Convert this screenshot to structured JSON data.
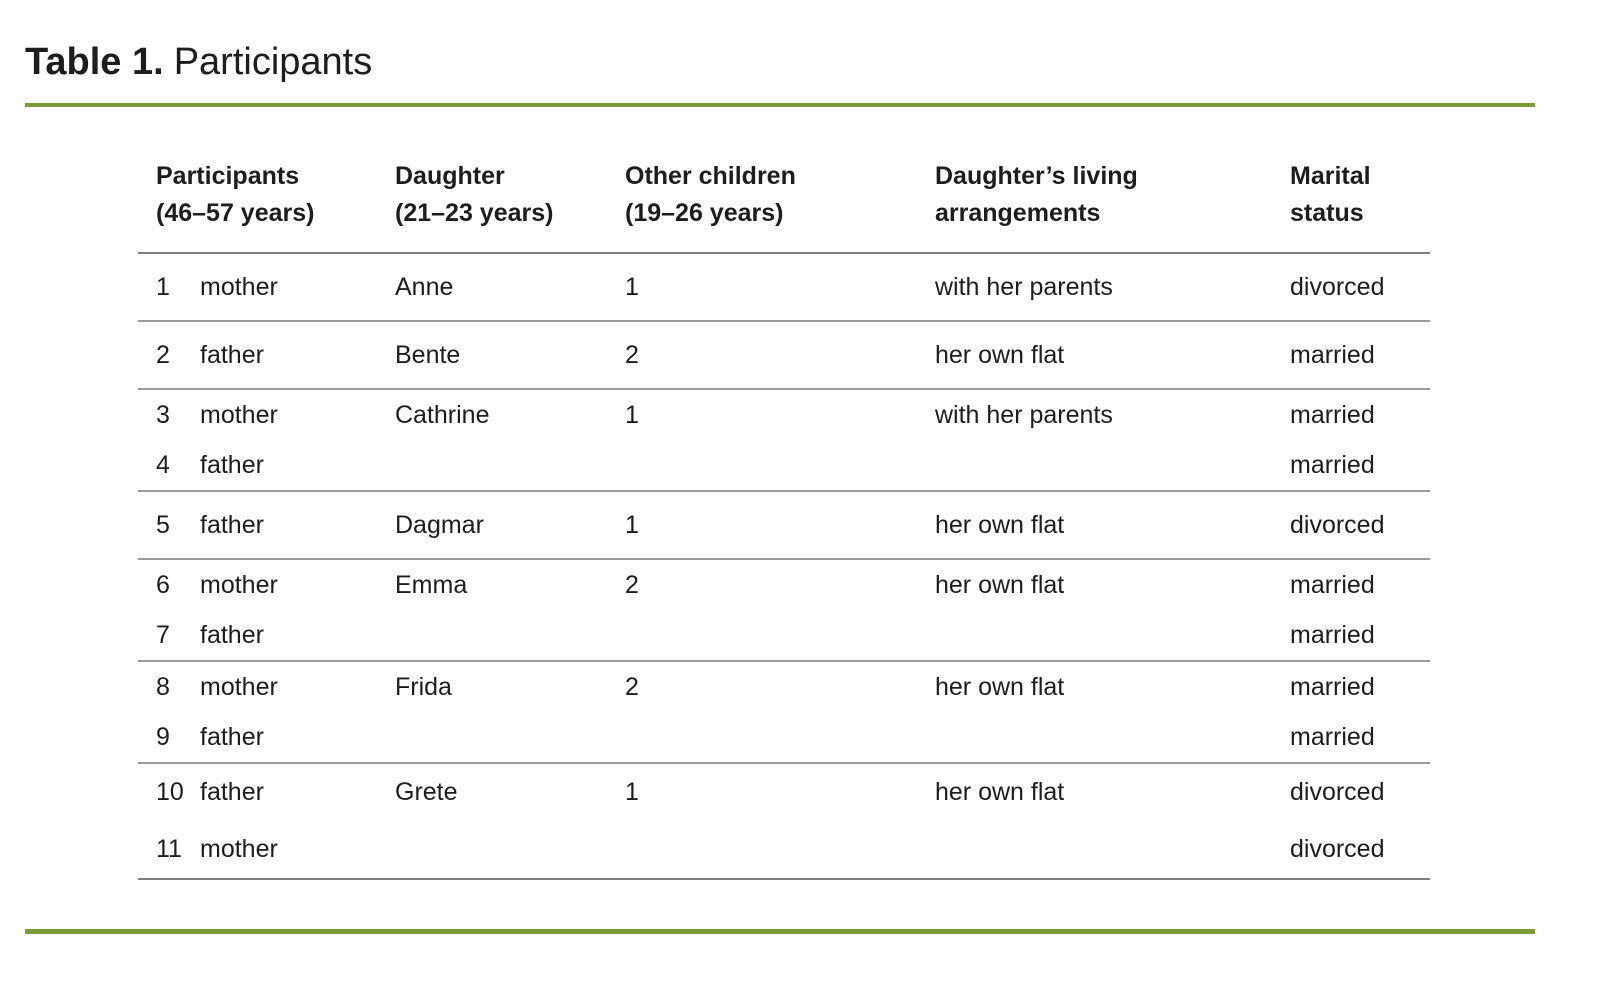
{
  "title": {
    "label": "Table 1.",
    "text": "Participants"
  },
  "colors": {
    "accent_green": "#7c9a38",
    "header_line_gray": "#7d7d7d",
    "row_line_gray": "#9a9a9a",
    "text": "#1d1d1d"
  },
  "table": {
    "headers": [
      {
        "line1": "Participants",
        "line2": "(46–57 years)"
      },
      {
        "line1": "Daughter",
        "line2": "(21–23 years)"
      },
      {
        "line1": "Other children",
        "line2": "(19–26 years)"
      },
      {
        "line1": "Daughter’s living",
        "line2": "arrangements"
      },
      {
        "line1": "Marital",
        "line2": "status"
      }
    ],
    "groups": [
      {
        "participants": [
          {
            "num": "1",
            "role": "mother"
          }
        ],
        "daughter": "Anne",
        "other_children": "1",
        "living": "with her parents",
        "marital": [
          "divorced"
        ]
      },
      {
        "participants": [
          {
            "num": "2",
            "role": "father"
          }
        ],
        "daughter": "Bente",
        "other_children": "2",
        "living": "her own flat",
        "marital": [
          "married"
        ]
      },
      {
        "participants": [
          {
            "num": "3",
            "role": "mother"
          },
          {
            "num": "4",
            "role": "father"
          }
        ],
        "daughter": "Cathrine",
        "other_children": "1",
        "living": "with her parents",
        "marital": [
          "married",
          "married"
        ]
      },
      {
        "participants": [
          {
            "num": "5",
            "role": "father"
          }
        ],
        "daughter": "Dagmar",
        "other_children": "1",
        "living": "her own flat",
        "marital": [
          "divorced"
        ]
      },
      {
        "participants": [
          {
            "num": "6",
            "role": "mother"
          },
          {
            "num": "7",
            "role": "father"
          }
        ],
        "daughter": "Emma",
        "other_children": "2",
        "living": "her own flat",
        "marital": [
          "married",
          "married"
        ]
      },
      {
        "participants": [
          {
            "num": "8",
            "role": "mother"
          },
          {
            "num": "9",
            "role": "father"
          }
        ],
        "daughter": "Frida",
        "other_children": "2",
        "living": "her own flat",
        "marital": [
          "married",
          "married"
        ]
      },
      {
        "participants": [
          {
            "num": "10",
            "role": "father"
          },
          {
            "num": "11",
            "role": "mother"
          }
        ],
        "daughter": "Grete",
        "other_children": "1",
        "living": "her own flat",
        "marital": [
          "divorced",
          "divorced"
        ]
      }
    ]
  }
}
